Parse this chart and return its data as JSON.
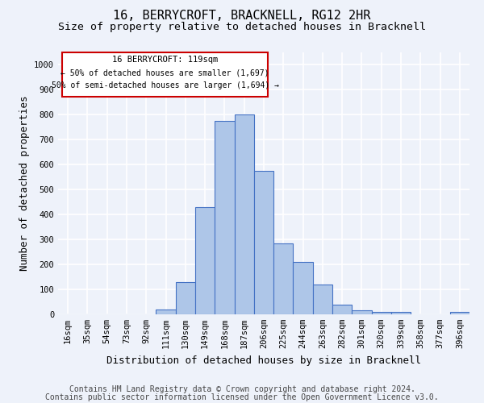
{
  "title": "16, BERRYCROFT, BRACKNELL, RG12 2HR",
  "subtitle": "Size of property relative to detached houses in Bracknell",
  "xlabel": "Distribution of detached houses by size in Bracknell",
  "ylabel": "Number of detached properties",
  "categories": [
    "16sqm",
    "35sqm",
    "54sqm",
    "73sqm",
    "92sqm",
    "111sqm",
    "130sqm",
    "149sqm",
    "168sqm",
    "187sqm",
    "206sqm",
    "225sqm",
    "244sqm",
    "263sqm",
    "282sqm",
    "301sqm",
    "320sqm",
    "339sqm",
    "358sqm",
    "377sqm",
    "396sqm"
  ],
  "values": [
    0,
    0,
    0,
    0,
    0,
    20,
    130,
    430,
    775,
    800,
    575,
    285,
    210,
    120,
    40,
    15,
    10,
    10,
    0,
    0,
    10
  ],
  "bar_color": "#aec6e8",
  "bar_edge_color": "#4472c4",
  "annotation_box_color": "#ffffff",
  "annotation_border_color": "#cc0000",
  "annotation_text_line1": "16 BERRYCROFT: 119sqm",
  "annotation_text_line2": "← 50% of detached houses are smaller (1,697)",
  "annotation_text_line3": "50% of semi-detached houses are larger (1,694) →",
  "ylim": [
    0,
    1050
  ],
  "yticks": [
    0,
    100,
    200,
    300,
    400,
    500,
    600,
    700,
    800,
    900,
    1000
  ],
  "footer_line1": "Contains HM Land Registry data © Crown copyright and database right 2024.",
  "footer_line2": "Contains public sector information licensed under the Open Government Licence v3.0.",
  "background_color": "#eef2fa",
  "grid_color": "#ffffff",
  "title_fontsize": 11,
  "subtitle_fontsize": 9.5,
  "axis_label_fontsize": 9,
  "tick_fontsize": 7.5,
  "footer_fontsize": 7
}
